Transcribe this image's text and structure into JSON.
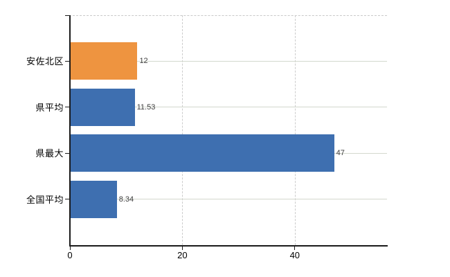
{
  "chart_data": {
    "type": "bar",
    "orientation": "horizontal",
    "title": "",
    "xlabel": "",
    "ylabel": "",
    "categories": [
      "安佐北区",
      "県平均",
      "県最大",
      "全国平均"
    ],
    "values": [
      12,
      11.53,
      47,
      8.34
    ],
    "value_labels": [
      "12",
      "11.53",
      "47",
      "8.34"
    ],
    "bar_colors": [
      "#ee9440",
      "#3e6fb0",
      "#3e6fb0",
      "#3e6fb0"
    ],
    "x_ticks": [
      0,
      20,
      40
    ],
    "x_tick_labels": [
      "0",
      "20",
      "40"
    ],
    "xlim": [
      0,
      56.4
    ],
    "grid": true,
    "legend": false,
    "colors": {
      "highlight_bar": "#ee9440",
      "default_bar": "#3e6fb0",
      "h_gridline": "#d3d8cd",
      "v_gridline_dashed": "#cccccc",
      "top_border_dashed": "#c9c9c9",
      "axis_line": "#1a1a1a",
      "value_label_text": "#3d3d3d",
      "axis_label_text": "#000000",
      "background": "#ffffff"
    }
  }
}
